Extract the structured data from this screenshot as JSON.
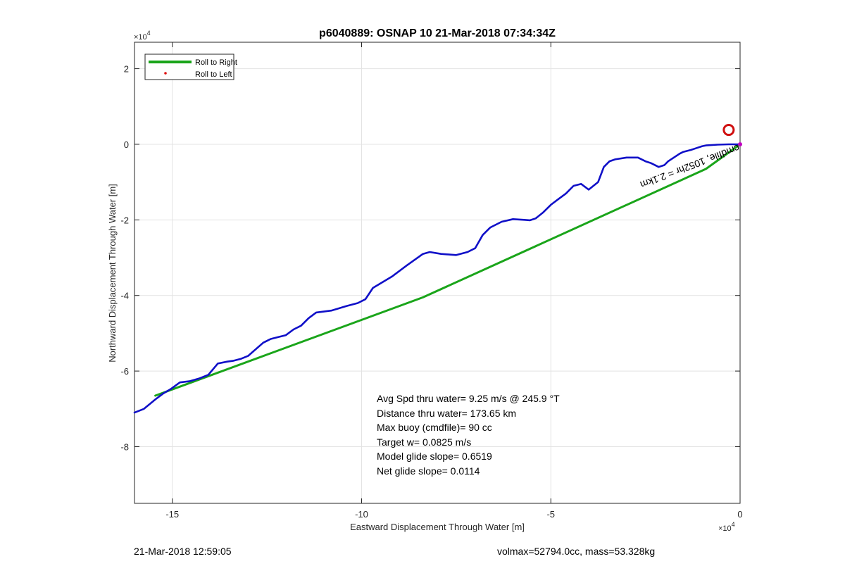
{
  "chart_data": {
    "type": "line",
    "title": "p6040889: OSNAP 10 21-Mar-2018 07:34:34Z",
    "xlabel": "Eastward Displacement Through Water [m]",
    "ylabel": "Northward Displacement Through Water [m]",
    "x_exponent": "×10",
    "y_exponent": "×10",
    "exponent_power": "4",
    "xlim": [
      -1.6,
      0.0
    ],
    "ylim": [
      -0.95,
      0.27
    ],
    "x_scale_factor": 10000,
    "y_scale_factor": 10000,
    "xticks": [
      -1.5,
      -1.0,
      -0.5,
      0.0
    ],
    "xtick_labels": [
      "-15",
      "-10",
      "-5",
      "0"
    ],
    "yticks": [
      0.2,
      0.0,
      -0.2,
      -0.4,
      -0.6,
      -0.8
    ],
    "ytick_labels": [
      "2",
      "0",
      "-2",
      "-4",
      "-6",
      "-8"
    ],
    "grid": true,
    "legend_placement": "top-left",
    "legend": [
      {
        "name": "Roll to Right",
        "color": "#1aa51a",
        "style": "line"
      },
      {
        "name": "Roll to Left",
        "color": "#e01010",
        "style": "dot"
      }
    ],
    "series": [
      {
        "name": "Roll to Right",
        "color": "#1aa51a",
        "x": [
          -1.545,
          -0.838,
          -0.09,
          0.0
        ],
        "y": [
          -0.665,
          -0.405,
          -0.065,
          0.0
        ]
      },
      {
        "name": "",
        "color": "#1010c8",
        "x": [
          -1.6,
          -1.575,
          -1.545,
          -1.525,
          -1.505,
          -1.48,
          -1.455,
          -1.43,
          -1.405,
          -1.38,
          -1.355,
          -1.34,
          -1.32,
          -1.3,
          -1.26,
          -1.24,
          -1.22,
          -1.2,
          -1.18,
          -1.16,
          -1.14,
          -1.12,
          -1.08,
          -1.04,
          -1.01,
          -0.99,
          -0.97,
          -0.92,
          -0.88,
          -0.838,
          -0.82,
          -0.79,
          -0.75,
          -0.72,
          -0.7,
          -0.68,
          -0.66,
          -0.63,
          -0.6,
          -0.57,
          -0.555,
          -0.54,
          -0.52,
          -0.5,
          -0.48,
          -0.46,
          -0.44,
          -0.42,
          -0.4,
          -0.375,
          -0.36,
          -0.345,
          -0.33,
          -0.3,
          -0.27,
          -0.25,
          -0.235,
          -0.215,
          -0.2,
          -0.19,
          -0.175,
          -0.16,
          -0.15,
          -0.13,
          -0.115,
          -0.1,
          -0.09,
          -0.06,
          -0.03,
          0.0
        ],
        "y": [
          -0.71,
          -0.7,
          -0.675,
          -0.66,
          -0.648,
          -0.63,
          -0.627,
          -0.62,
          -0.61,
          -0.58,
          -0.575,
          -0.573,
          -0.568,
          -0.56,
          -0.525,
          -0.515,
          -0.51,
          -0.505,
          -0.49,
          -0.48,
          -0.46,
          -0.445,
          -0.44,
          -0.428,
          -0.42,
          -0.41,
          -0.38,
          -0.35,
          -0.32,
          -0.29,
          -0.285,
          -0.29,
          -0.293,
          -0.285,
          -0.275,
          -0.24,
          -0.22,
          -0.205,
          -0.198,
          -0.2,
          -0.201,
          -0.196,
          -0.18,
          -0.16,
          -0.145,
          -0.13,
          -0.11,
          -0.105,
          -0.12,
          -0.1,
          -0.06,
          -0.045,
          -0.04,
          -0.035,
          -0.035,
          -0.045,
          -0.05,
          -0.06,
          -0.055,
          -0.045,
          -0.035,
          -0.025,
          -0.02,
          -0.015,
          -0.01,
          -0.005,
          -0.003,
          -0.001,
          0.0,
          0.0
        ]
      }
    ],
    "annotations": [
      "Avg Spd thru water=  9.25 m/s @ 245.9 °T",
      "Distance thru water= 173.65 km",
      "Max buoy (cmdfile)= 90 cc",
      "Target w= 0.0825 m/s",
      "Model glide slope= 0.6519",
      "Net glide slope= 0.0114"
    ],
    "rotated_label": "cmdfile, 1052hr = 2.1km",
    "marker": {
      "shape": "circle",
      "color": "#d01010",
      "x": -0.03,
      "y": 0.038
    },
    "endpoint_marker_color": "#c000c0"
  },
  "footer": {
    "left": "21-Mar-2018 12:59:05",
    "right": "volmax=52794.0cc, mass=53.328kg"
  }
}
